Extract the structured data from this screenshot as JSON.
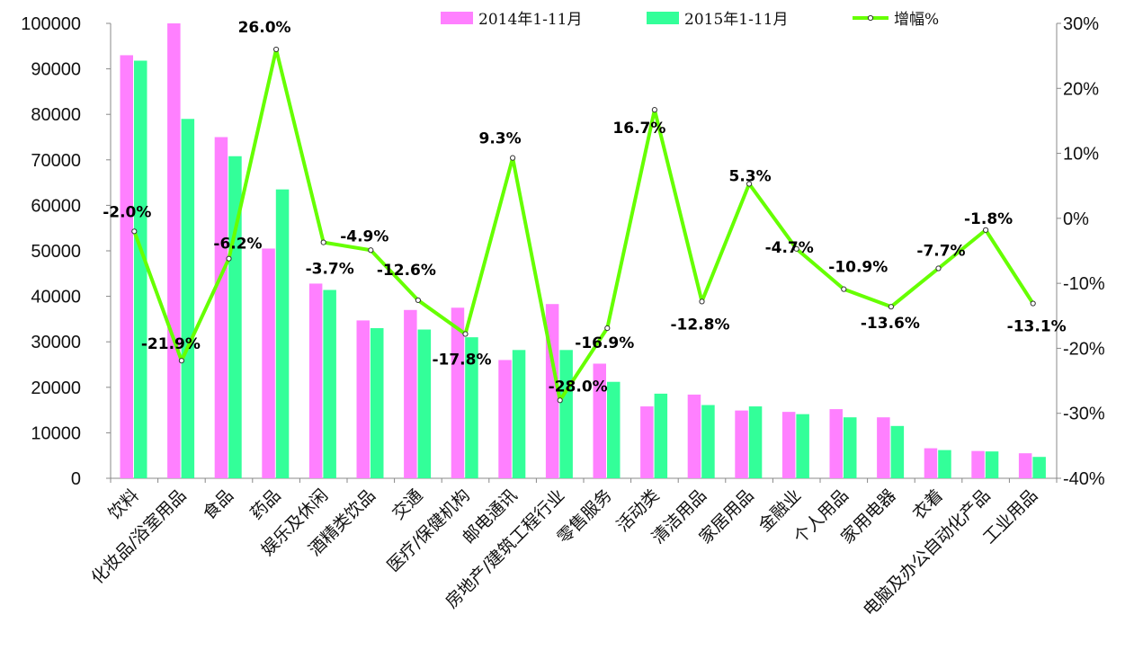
{
  "chart_data": {
    "type": "bar",
    "title": "",
    "xlabel": "",
    "ylabel": "",
    "categories": [
      "饮料",
      "化妆品/浴室用品",
      "食品",
      "药品",
      "娱乐及休闲",
      "酒精类饮品",
      "交通",
      "医疗/保健机构",
      "邮电通讯",
      "房地产/建筑工程行业",
      "零售服务",
      "活动类",
      "清洁用品",
      "家居用品",
      "金融业",
      "个人用品",
      "家用电器",
      "衣着",
      "电脑及办公自动化产品",
      "工业用品"
    ],
    "series": [
      {
        "name": "2014年1-11月",
        "type": "bar",
        "axis": "left",
        "color": "#ff80ff",
        "values": [
          93000,
          100000,
          75000,
          50500,
          42800,
          34700,
          37000,
          37500,
          26000,
          38300,
          25200,
          15800,
          18400,
          14900,
          14600,
          15200,
          13400,
          6600,
          6000,
          5500
        ]
      },
      {
        "name": "2015年1-11月",
        "type": "bar",
        "axis": "left",
        "color": "#33ff99",
        "values": [
          91800,
          79000,
          70800,
          63500,
          41400,
          33000,
          32700,
          31000,
          28200,
          28200,
          21200,
          18600,
          16100,
          15800,
          14100,
          13400,
          11500,
          6200,
          5900,
          4700
        ]
      },
      {
        "name": "增幅%",
        "type": "line",
        "axis": "right",
        "color": "#66ff00",
        "values": [
          -2.0,
          -21.9,
          -6.2,
          26.0,
          -3.7,
          -4.9,
          -12.6,
          -17.8,
          9.3,
          -28.0,
          -16.9,
          16.7,
          -12.8,
          5.3,
          -4.7,
          -10.9,
          -13.6,
          -7.7,
          -1.8,
          -13.1
        ],
        "labels": [
          "-2.0%",
          "-21.9%",
          "-6.2%",
          "26.0%",
          "-3.7%",
          "-4.9%",
          "-12.6%",
          "-17.8%",
          "9.3%",
          "-28.0%",
          "-16.9%",
          "16.7%",
          "-12.8%",
          "5.3%",
          "-4.7%",
          "-10.9%",
          "-13.6%",
          "-7.7%",
          "-1.8%",
          "-13.1%"
        ]
      }
    ],
    "y_left": {
      "min": 0,
      "max": 100000,
      "ticks": [
        "0",
        "10000",
        "20000",
        "30000",
        "40000",
        "50000",
        "60000",
        "70000",
        "80000",
        "90000",
        "100000"
      ]
    },
    "y_right": {
      "min": -40,
      "max": 30,
      "ticks": [
        "-40%",
        "-30%",
        "-20%",
        "-10%",
        "0%",
        "10%",
        "20%",
        "30%"
      ]
    },
    "legend": {
      "position": "top-center",
      "entries": [
        "2014年1-11月",
        "2015年1-11月",
        "增幅%"
      ]
    },
    "grid": false
  }
}
